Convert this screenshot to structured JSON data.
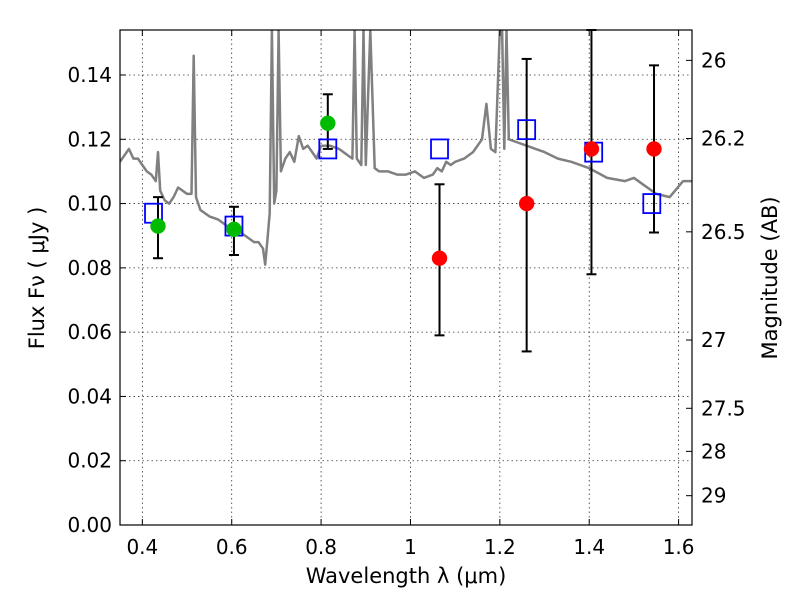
{
  "chart_data": {
    "type": "scatter",
    "xlabel": "Wavelength  λ (μm)",
    "ylabel": "Flux  Fν  ( μJy )",
    "ylabel_right": "Magnitude (AB)",
    "xlim": [
      0.35,
      1.63
    ],
    "ylim": [
      0.0,
      0.154
    ],
    "grid": true,
    "x_ticks": [
      0.4,
      0.6,
      0.8,
      1.0,
      1.2,
      1.4,
      1.6
    ],
    "x_tick_labels": [
      "0.4",
      "0.6",
      "0.8",
      "1",
      "1.2",
      "1.4",
      "1.6"
    ],
    "y_ticks": [
      0.0,
      0.02,
      0.04,
      0.06,
      0.08,
      0.1,
      0.12,
      0.14
    ],
    "y_tick_labels": [
      "0.00",
      "0.02",
      "0.04",
      "0.06",
      "0.08",
      "0.10",
      "0.12",
      "0.14"
    ],
    "right_ticks": [
      {
        "mag": 26,
        "label": "26"
      },
      {
        "mag": 26.2,
        "label": "26.2"
      },
      {
        "mag": 26.5,
        "label": "26.5"
      },
      {
        "mag": 27,
        "label": "27"
      },
      {
        "mag": 27.5,
        "label": "27.5"
      },
      {
        "mag": 28,
        "label": "28"
      },
      {
        "mag": 29,
        "label": "29"
      }
    ],
    "series": [
      {
        "marker": "line",
        "color": "#808080",
        "x": [
          0.35,
          0.37,
          0.38,
          0.39,
          0.4,
          0.41,
          0.42,
          0.43,
          0.435,
          0.44,
          0.45,
          0.46,
          0.47,
          0.48,
          0.49,
          0.5,
          0.51,
          0.515,
          0.52,
          0.53,
          0.55,
          0.57,
          0.59,
          0.6,
          0.62,
          0.64,
          0.65,
          0.66,
          0.67,
          0.675,
          0.68,
          0.685,
          0.69,
          0.695,
          0.7,
          0.705,
          0.71,
          0.72,
          0.73,
          0.74,
          0.75,
          0.76,
          0.77,
          0.78,
          0.79,
          0.8,
          0.82,
          0.84,
          0.86,
          0.87,
          0.875,
          0.88,
          0.89,
          0.895,
          0.9,
          0.91,
          0.92,
          0.93,
          0.95,
          0.97,
          0.99,
          1.01,
          1.03,
          1.05,
          1.06,
          1.07,
          1.08,
          1.09,
          1.1,
          1.12,
          1.14,
          1.16,
          1.17,
          1.18,
          1.19,
          1.2,
          1.205,
          1.21,
          1.215,
          1.22,
          1.24,
          1.26,
          1.28,
          1.3,
          1.33,
          1.36,
          1.4,
          1.44,
          1.48,
          1.5,
          1.52,
          1.55,
          1.58,
          1.61,
          1.63
        ],
        "y": [
          0.113,
          0.117,
          0.114,
          0.114,
          0.112,
          0.11,
          0.109,
          0.107,
          0.116,
          0.104,
          0.101,
          0.1,
          0.102,
          0.105,
          0.104,
          0.103,
          0.103,
          0.146,
          0.102,
          0.098,
          0.096,
          0.095,
          0.093,
          0.092,
          0.091,
          0.089,
          0.088,
          0.088,
          0.086,
          0.081,
          0.089,
          0.097,
          0.154,
          0.1,
          0.104,
          0.154,
          0.11,
          0.114,
          0.116,
          0.113,
          0.121,
          0.117,
          0.118,
          0.116,
          0.114,
          0.118,
          0.118,
          0.117,
          0.115,
          0.114,
          0.154,
          0.114,
          0.112,
          0.154,
          0.112,
          0.154,
          0.111,
          0.11,
          0.11,
          0.109,
          0.109,
          0.11,
          0.108,
          0.109,
          0.111,
          0.11,
          0.113,
          0.112,
          0.113,
          0.114,
          0.116,
          0.12,
          0.131,
          0.117,
          0.116,
          0.154,
          0.154,
          0.117,
          0.154,
          0.12,
          0.119,
          0.118,
          0.117,
          0.116,
          0.114,
          0.113,
          0.111,
          0.108,
          0.107,
          0.108,
          0.106,
          0.103,
          0.102,
          0.107,
          0.107
        ]
      },
      {
        "marker": "open-square",
        "color": "#0000ff",
        "x": [
          0.425,
          0.605,
          0.815,
          1.065,
          1.26,
          1.41,
          1.54
        ],
        "y": [
          0.097,
          0.093,
          0.117,
          0.117,
          0.123,
          0.116,
          0.1
        ]
      },
      {
        "marker": "filled-circle",
        "color": "#00bb00",
        "x": [
          0.435,
          0.605,
          0.815
        ],
        "y": [
          0.093,
          0.092,
          0.125
        ],
        "yerr_low": [
          0.083,
          0.084,
          0.117
        ],
        "yerr_high": [
          0.102,
          0.099,
          0.134
        ]
      },
      {
        "marker": "filled-circle",
        "color": "#ff0000",
        "x": [
          1.065,
          1.26,
          1.405,
          1.545
        ],
        "y": [
          0.083,
          0.1,
          0.117,
          0.117
        ],
        "yerr_low": [
          0.059,
          0.054,
          0.078,
          0.091
        ],
        "yerr_high": [
          0.106,
          0.145,
          0.154,
          0.143
        ]
      }
    ]
  }
}
